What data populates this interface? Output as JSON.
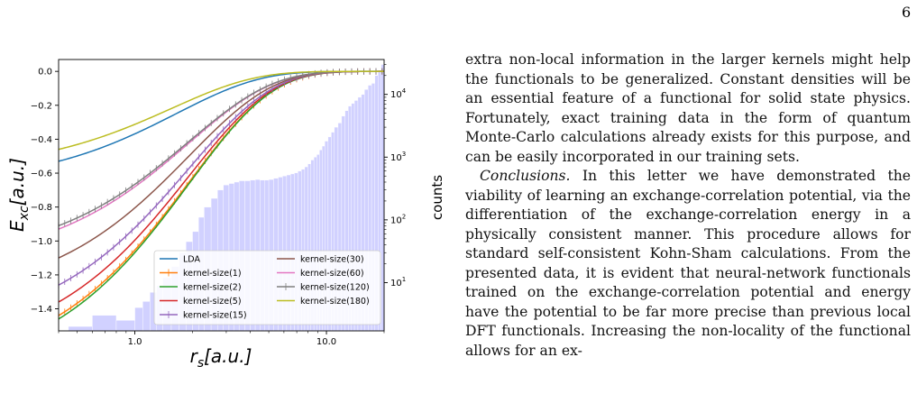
{
  "page_number": "6",
  "body": {
    "para1": "extra non-local information in the larger kernels might help the functionals to be generalized. Constant densities will be an essential feature of a functional for solid state physics. Fortunately, exact training data in the form of quantum Monte-Carlo calculations already exists for this purpose, and can be easily incorporated in our training sets.",
    "para2_lead": "Conclusions.",
    "para2": " In this letter we have demonstrated the viability of learning an exchange-correlation potential, via the differentiation of the exchange-correlation energy in a physically consistent manner. This procedure allows for standard self-consistent Kohn-Sham calculations. From the presented data, it is evident that neural-network functionals trained on the exchange-correlation potential and energy have the potential to be far more precise than previous local DFT functionals. Increasing the non-locality of the functional allows for an ex-"
  },
  "chart_data": {
    "type": "line",
    "xscale": "log",
    "xlim": [
      0.4,
      20
    ],
    "ylim": [
      -1.53,
      0.07
    ],
    "y2scale": "log",
    "y2lim": [
      1.7,
      36000
    ],
    "xlabel": "r_s[a.u.]",
    "ylabel": "E_xc[a.u.]",
    "y2label": "counts",
    "xticks": [
      "1.0",
      "10.0"
    ],
    "yticks": [
      "0.0",
      "−0.2",
      "−0.4",
      "−0.6",
      "−0.8",
      "−1.0",
      "−1.2",
      "−1.4"
    ],
    "y2ticks": [
      "10^4",
      "10^3",
      "10^2",
      "10^1"
    ],
    "legend_position": "lower-right",
    "grid": false,
    "series": [
      {
        "name": "LDA",
        "color": "#1f77b4",
        "y_at_x_min": -0.53,
        "scale": 1.65,
        "marker": false
      },
      {
        "name": "kernel-size(1)",
        "color": "#ff7f0e",
        "y_at_x_min": -1.44,
        "scale": 1.92,
        "marker": true
      },
      {
        "name": "kernel-size(2)",
        "color": "#2ca02c",
        "y_at_x_min": -1.46,
        "scale": 1.92,
        "marker": false
      },
      {
        "name": "kernel-size(5)",
        "color": "#d62728",
        "y_at_x_min": -1.36,
        "scale": 1.92,
        "marker": false
      },
      {
        "name": "kernel-size(15)",
        "color": "#9467bd",
        "y_at_x_min": -1.26,
        "scale": 1.92,
        "marker": true
      },
      {
        "name": "kernel-size(30)",
        "color": "#8c564b",
        "y_at_x_min": -1.1,
        "scale": 1.92,
        "marker": false
      },
      {
        "name": "kernel-size(60)",
        "color": "#e377c2",
        "y_at_x_min": -0.93,
        "scale": 1.92,
        "marker": false
      },
      {
        "name": "kernel-size(120)",
        "color": "#7f7f7f",
        "y_at_x_min": -0.91,
        "scale": 1.92,
        "marker": true
      },
      {
        "name": "kernel-size(180)",
        "color": "#bcbd22",
        "y_at_x_min": -0.46,
        "scale": 1.55,
        "marker": false
      }
    ],
    "histogram": {
      "color": "#b4b4ff",
      "bins": [
        [
          0.45,
          2
        ],
        [
          0.6,
          3
        ],
        [
          0.8,
          2.5
        ],
        [
          1.0,
          4
        ],
        [
          1.1,
          5
        ],
        [
          1.2,
          7
        ],
        [
          1.3,
          9
        ],
        [
          1.4,
          12
        ],
        [
          1.55,
          18
        ],
        [
          1.7,
          30
        ],
        [
          1.85,
          45
        ],
        [
          2.0,
          65
        ],
        [
          2.15,
          110
        ],
        [
          2.3,
          160
        ],
        [
          2.5,
          220
        ],
        [
          2.7,
          300
        ],
        [
          2.9,
          360
        ],
        [
          3.1,
          380
        ],
        [
          3.3,
          400
        ],
        [
          3.5,
          420
        ],
        [
          3.75,
          420
        ],
        [
          4.0,
          430
        ],
        [
          4.25,
          440
        ],
        [
          4.5,
          430
        ],
        [
          4.75,
          430
        ],
        [
          5.0,
          440
        ],
        [
          5.3,
          460
        ],
        [
          5.6,
          480
        ],
        [
          5.9,
          500
        ],
        [
          6.2,
          520
        ],
        [
          6.5,
          540
        ],
        [
          6.8,
          560
        ],
        [
          7.1,
          600
        ],
        [
          7.4,
          640
        ],
        [
          7.7,
          700
        ],
        [
          8.0,
          780
        ],
        [
          8.3,
          900
        ],
        [
          8.6,
          1000
        ],
        [
          8.9,
          1100
        ],
        [
          9.2,
          1300
        ],
        [
          9.5,
          1500
        ],
        [
          9.8,
          1800
        ],
        [
          10.2,
          2100
        ],
        [
          10.6,
          2500
        ],
        [
          11.0,
          3000
        ],
        [
          11.5,
          3500
        ],
        [
          12.0,
          4500
        ],
        [
          12.5,
          5500
        ],
        [
          13.0,
          6500
        ],
        [
          13.5,
          7200
        ],
        [
          14.0,
          8000
        ],
        [
          14.6,
          9000
        ],
        [
          15.2,
          10000
        ],
        [
          15.8,
          12000
        ],
        [
          16.5,
          14000
        ],
        [
          17.2,
          15000
        ],
        [
          17.9,
          20000
        ],
        [
          18.6,
          24000
        ],
        [
          19.3,
          30000
        ]
      ]
    }
  }
}
